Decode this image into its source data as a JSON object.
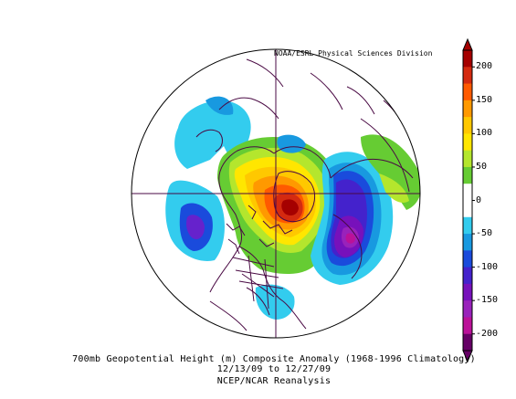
{
  "credit": "NOAA/ESRL Physical Sciences Division",
  "caption": {
    "line1": "700mb Geopotential Height (m) Composite Anomaly (1968-1996 Climatology)",
    "line2": "12/13/09  to 12/27/09",
    "line3": "NCEP/NCAR Reanalysis"
  },
  "colorbar": {
    "labels": [
      "200",
      "150",
      "100",
      "50",
      "0",
      "-50",
      "-100",
      "-150",
      "-200"
    ],
    "colors": [
      "#a50000",
      "#d42a10",
      "#ff5a00",
      "#ff9900",
      "#ffc800",
      "#ffe600",
      "#b4e62d",
      "#66cc33",
      "#ffffff",
      "#ffffff",
      "#33ccee",
      "#1899e0",
      "#1a4bdc",
      "#4422cc",
      "#7711bb",
      "#9922bb",
      "#bb1199",
      "#660066"
    ]
  },
  "colors": {
    "map_outline": "#4a0a44",
    "background": "#ffffff"
  }
}
